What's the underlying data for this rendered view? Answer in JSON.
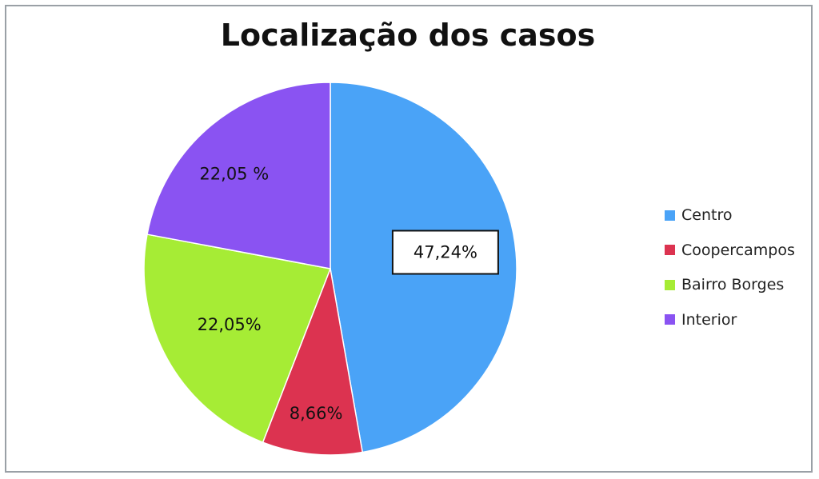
{
  "chart_data": {
    "type": "pie",
    "title": "Localização dos casos",
    "categories": [
      "Centro",
      "Coopercampos",
      "Bairro Borges",
      "Interior"
    ],
    "values": [
      47.24,
      8.66,
      22.05,
      22.05
    ],
    "data_labels": [
      "47,24%",
      "8,66%",
      "22,05%",
      "22,05 %"
    ],
    "colors": [
      "#4aa3f7",
      "#dc3350",
      "#a6ec35",
      "#8a53f2"
    ],
    "legend_position": "right",
    "start_angle_deg": 0,
    "direction": "clockwise"
  }
}
